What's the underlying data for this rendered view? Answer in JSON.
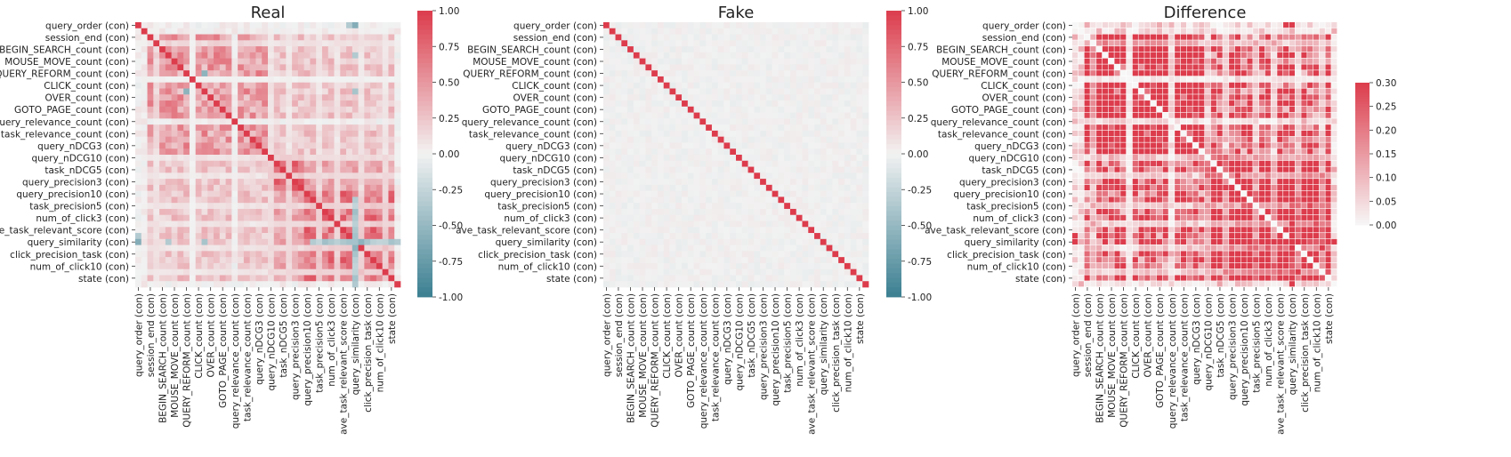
{
  "chart_data": [
    {
      "type": "heatmap",
      "title": "Real",
      "row_tick_labels": [
        "query_order (con)",
        "session_end (con)",
        "BEGIN_SEARCH_count (con)",
        "MOUSE_MOVE_count (con)",
        "QUERY_REFORM_count (con)",
        "CLICK_count (con)",
        "OVER_count (con)",
        "GOTO_PAGE_count (con)",
        "query_relevance_count (con)",
        "task_relevance_count (con)",
        "query_nDCG3 (con)",
        "query_nDCG10 (con)",
        "task_nDCG5 (con)",
        "query_precision3 (con)",
        "query_precision10 (con)",
        "task_precision5 (con)",
        "num_of_click3 (con)",
        "ave_task_relevant_score (con)",
        "query_similarity (con)",
        "click_precision_task (con)",
        "num_of_click10 (con)",
        "state (con)"
      ],
      "col_tick_labels": [
        "query_order (con)",
        "session_end (con)",
        "BEGIN_SEARCH_count (con)",
        "MOUSE_MOVE_count (con)",
        "QUERY_REFORM_count (con)",
        "CLICK_count (con)",
        "OVER_count (con)",
        "GOTO_PAGE_count (con)",
        "query_relevance_count (con)",
        "task_relevance_count (con)",
        "query_nDCG3 (con)",
        "query_nDCG10 (con)",
        "task_nDCG5 (con)",
        "query_precision3 (con)",
        "query_precision10 (con)",
        "task_precision5 (con)",
        "num_of_click3 (con)",
        "ave_task_relevant_score (con)",
        "query_similarity (con)",
        "click_precision_task (con)",
        "num_of_click10 (con)",
        "state (con)"
      ],
      "colorbar": {
        "min": -1,
        "max": 1,
        "ticks": [
          "-1.00",
          "-0.75",
          "-0.50",
          "-0.25",
          "0.00",
          "0.25",
          "0.50",
          "0.75",
          "1.00"
        ]
      },
      "colormap": "diverging teal-white-red",
      "pattern": "correlation matrix; diagonal = 1.0; dense positive block among relevance/nDCG/precision variables (~0.5-0.9); moderate positive block among count variables (~0.3-0.7); query_similarity negatively correlated with query_order (~-0.6)",
      "grid_size": [
        44,
        44
      ],
      "grid_lines": false
    },
    {
      "type": "heatmap",
      "title": "Fake",
      "row_tick_labels": [
        "query_order (con)",
        "session_end (con)",
        "BEGIN_SEARCH_count (con)",
        "MOUSE_MOVE_count (con)",
        "QUERY_REFORM_count (con)",
        "CLICK_count (con)",
        "OVER_count (con)",
        "GOTO_PAGE_count (con)",
        "query_relevance_count (con)",
        "task_relevance_count (con)",
        "query_nDCG3 (con)",
        "query_nDCG10 (con)",
        "task_nDCG5 (con)",
        "query_precision3 (con)",
        "query_precision10 (con)",
        "task_precision5 (con)",
        "num_of_click3 (con)",
        "ave_task_relevant_score (con)",
        "query_similarity (con)",
        "click_precision_task (con)",
        "num_of_click10 (con)",
        "state (con)"
      ],
      "col_tick_labels": [
        "query_order (con)",
        "session_end (con)",
        "BEGIN_SEARCH_count (con)",
        "MOUSE_MOVE_count (con)",
        "QUERY_REFORM_count (con)",
        "CLICK_count (con)",
        "OVER_count (con)",
        "GOTO_PAGE_count (con)",
        "query_relevance_count (con)",
        "task_relevance_count (con)",
        "query_nDCG3 (con)",
        "query_nDCG10 (con)",
        "task_nDCG5 (con)",
        "query_precision3 (con)",
        "query_precision10 (con)",
        "task_precision5 (con)",
        "num_of_click3 (con)",
        "ave_task_relevant_score (con)",
        "query_similarity (con)",
        "click_precision_task (con)",
        "num_of_click10 (con)",
        "state (con)"
      ],
      "colorbar": {
        "min": -1,
        "max": 1,
        "ticks": [
          "-1.00",
          "-0.75",
          "-0.50",
          "-0.25",
          "0.00",
          "0.25",
          "0.50",
          "0.75",
          "1.00"
        ]
      },
      "colormap": "diverging teal-white-red",
      "pattern": "near-identity matrix; diagonal = 1.0; off-diagonal values close to 0 (about -0.05 to 0.05)",
      "grid_size": [
        44,
        44
      ],
      "grid_lines": false
    },
    {
      "type": "heatmap",
      "title": "Difference",
      "row_tick_labels": [
        "query_order (con)",
        "session_end (con)",
        "BEGIN_SEARCH_count (con)",
        "MOUSE_MOVE_count (con)",
        "QUERY_REFORM_count (con)",
        "CLICK_count (con)",
        "OVER_count (con)",
        "GOTO_PAGE_count (con)",
        "query_relevance_count (con)",
        "task_relevance_count (con)",
        "query_nDCG3 (con)",
        "query_nDCG10 (con)",
        "task_nDCG5 (con)",
        "query_precision3 (con)",
        "query_precision10 (con)",
        "task_precision5 (con)",
        "num_of_click3 (con)",
        "ave_task_relevant_score (con)",
        "query_similarity (con)",
        "click_precision_task (con)",
        "num_of_click10 (con)",
        "state (con)"
      ],
      "col_tick_labels": [
        "query_order (con)",
        "session_end (con)",
        "BEGIN_SEARCH_count (con)",
        "MOUSE_MOVE_count (con)",
        "QUERY_REFORM_count (con)",
        "CLICK_count (con)",
        "OVER_count (con)",
        "GOTO_PAGE_count (con)",
        "query_relevance_count (con)",
        "task_relevance_count (con)",
        "query_nDCG3 (con)",
        "query_nDCG10 (con)",
        "task_nDCG5 (con)",
        "query_precision3 (con)",
        "query_precision10 (con)",
        "task_precision5 (con)",
        "num_of_click3 (con)",
        "ave_task_relevant_score (con)",
        "query_similarity (con)",
        "click_precision_task (con)",
        "num_of_click10 (con)",
        "state (con)"
      ],
      "colorbar": {
        "min": 0,
        "max": 0.3,
        "ticks": [
          "0.00",
          "0.05",
          "0.10",
          "0.15",
          "0.20",
          "0.25",
          "0.30"
        ]
      },
      "colormap": "sequential white-red",
      "pattern": "absolute difference Real-Fake; diagonal = 0; large block of saturated cells (>=0.3) among relevance/nDCG/precision and count variables",
      "grid_size": [
        44,
        44
      ],
      "grid_lines": true
    }
  ],
  "colors": {
    "negative": "#3a7f91",
    "neutral": "#f2f2f2",
    "positive": "#dc3c4c",
    "background": "#ffffff"
  }
}
